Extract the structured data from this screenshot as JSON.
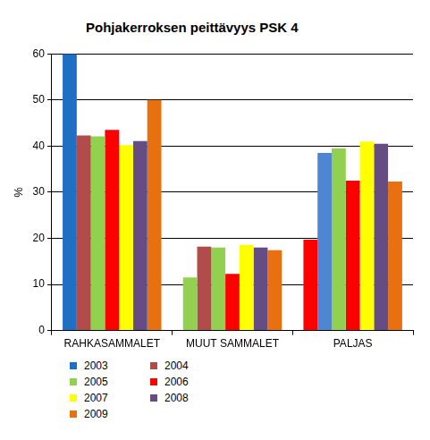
{
  "chart_data": {
    "type": "bar",
    "title": "Pohjakerroksen peittävyys PSK 4",
    "y_label": "%",
    "categories": [
      "RAHKASAMMALET",
      "MUUT SAMMALET",
      "PALJAS"
    ],
    "series": [
      {
        "name": "2003",
        "color": "#1F6FC4",
        "colors": [
          "#1F6FC4",
          "#92D050",
          "#FF0000"
        ],
        "values": [
          60,
          11.5,
          19.7
        ]
      },
      {
        "name": "2004",
        "color": "#B24C4A",
        "colors": [
          "#B24C4A",
          "#B24C4A",
          "#4F86D2"
        ],
        "values": [
          42.3,
          18.2,
          38.5
        ]
      },
      {
        "name": "2005",
        "color": "#92D050",
        "values": [
          42.1,
          18,
          39.5
        ]
      },
      {
        "name": "2006",
        "color": "#FF0000",
        "values": [
          43.5,
          12.3,
          32.5
        ]
      },
      {
        "name": "2007",
        "color": "#FFFF00",
        "values": [
          40.2,
          18.6,
          41
        ]
      },
      {
        "name": "2008",
        "color": "#654C82",
        "values": [
          41.1,
          18,
          40.5
        ]
      },
      {
        "name": "2009",
        "color": "#E8700F",
        "values": [
          50,
          17.4,
          32.3
        ]
      }
    ],
    "ylim": [
      0,
      60
    ],
    "yticks": [
      0,
      10,
      20,
      30,
      40,
      50,
      60
    ],
    "grid": true,
    "legend": "bottom"
  }
}
